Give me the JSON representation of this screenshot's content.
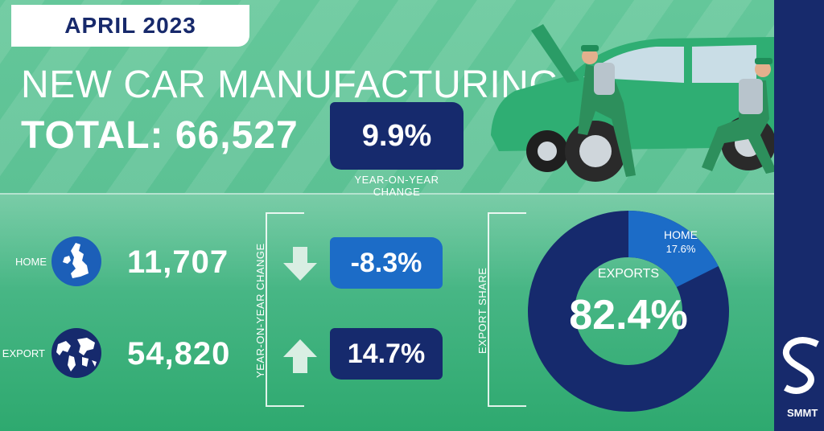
{
  "header": {
    "date": "APRIL 2023",
    "title": "NEW CAR MANUFACTURING",
    "total": "TOTAL: 66,527",
    "yoy_value": "9.9%",
    "yoy_label": "YEAR-ON-YEAR CHANGE"
  },
  "rows": [
    {
      "label": "HOME",
      "value": "11,707",
      "change": "-8.3%",
      "direction": "down",
      "box_color": "#1c6cc7",
      "icon": "uk-map-icon"
    },
    {
      "label": "EXPORT",
      "value": "54,820",
      "change": "14.7%",
      "direction": "up",
      "box_color": "#162a6d",
      "icon": "world-globe-icon"
    }
  ],
  "change_axis_label": "YEAR-ON-YEAR CHANGE",
  "share_axis_label": "EXPORT SHARE",
  "export_share": {
    "home_label": "HOME",
    "home_value": "17.6%",
    "home_fraction": 0.176,
    "exports_label": "EXPORTS",
    "exports_value": "82.4%",
    "exports_fraction": 0.824,
    "home_color": "#1c6cc7",
    "exports_color": "#162a6d"
  },
  "brand": "SMMT",
  "colors": {
    "navy": "#162a6d",
    "blue": "#1c6cc7",
    "green": "#5cc194"
  }
}
